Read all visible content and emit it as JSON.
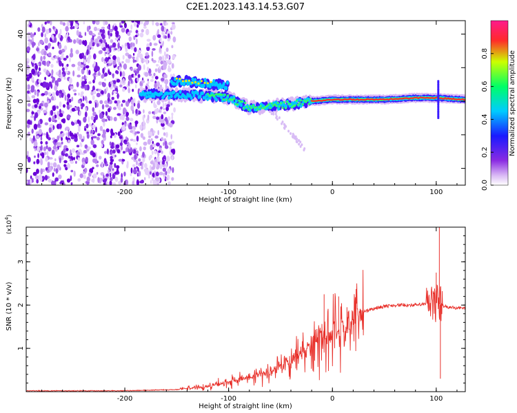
{
  "title": "C2E1.2023.143.14.53.G07",
  "chart_data": [
    {
      "type": "heatmap",
      "xlabel": "Height of straight line (km)",
      "ylabel": "Frequency (Hz)",
      "xlim": [
        -295,
        128
      ],
      "ylim": [
        -50,
        48
      ],
      "x_ticks": [
        -200,
        -100,
        0,
        100
      ],
      "y_ticks": [
        -40,
        -20,
        0,
        20,
        40
      ],
      "colorbar": {
        "label": "Normalized spectral amplitude",
        "range": [
          0,
          1
        ],
        "ticks": [
          0.0,
          0.2,
          0.4,
          0.6,
          0.8
        ],
        "tick_labels": [
          "0.0",
          "0.2",
          "0.4",
          "0.6",
          "0.8"
        ],
        "colormap": [
          "#ffffff",
          "#d9b8f5",
          "#8a2be2",
          "#1a1aff",
          "#00ccff",
          "#00ff66",
          "#ccff00",
          "#ff2a2a",
          "#ff1a8c"
        ]
      },
      "features": {
        "noise_region_x": [
          -295,
          -160
        ],
        "main_line": [
          {
            "x": -185,
            "f": 4
          },
          {
            "x": -165,
            "f": 4
          },
          {
            "x": -140,
            "f": 4
          },
          {
            "x": -120,
            "f": 3
          },
          {
            "x": -100,
            "f": 2
          },
          {
            "x": -80,
            "f": -4
          },
          {
            "x": -60,
            "f": -3
          },
          {
            "x": -40,
            "f": -2
          },
          {
            "x": -20,
            "f": 0
          },
          {
            "x": 0,
            "f": 1
          },
          {
            "x": 20,
            "f": 1
          },
          {
            "x": 50,
            "f": 1
          },
          {
            "x": 80,
            "f": 2
          },
          {
            "x": 100,
            "f": 2
          },
          {
            "x": 128,
            "f": 1
          }
        ],
        "upper_branch": [
          {
            "x": -155,
            "f": 12
          },
          {
            "x": -140,
            "f": 12
          },
          {
            "x": -125,
            "f": 11
          },
          {
            "x": -110,
            "f": 10
          },
          {
            "x": -100,
            "f": 9
          }
        ]
      }
    },
    {
      "type": "line",
      "xlabel": "Height of straight line (km)",
      "ylabel": "SNR (10 * v/v)",
      "y_multiplier": "(x10",
      "y_multiplier_exp": "4",
      "y_multiplier_close": ")",
      "xlim": [
        -295,
        128
      ],
      "ylim": [
        0,
        3.8
      ],
      "x_ticks": [
        -200,
        -100,
        0,
        100
      ],
      "y_ticks": [
        1,
        2,
        3
      ],
      "line_color": "#e8302a",
      "envelope": [
        {
          "x": -295,
          "y": 0.02
        },
        {
          "x": -200,
          "y": 0.02
        },
        {
          "x": -150,
          "y": 0.05
        },
        {
          "x": -120,
          "y": 0.12
        },
        {
          "x": -100,
          "y": 0.22
        },
        {
          "x": -80,
          "y": 0.32
        },
        {
          "x": -60,
          "y": 0.45
        },
        {
          "x": -40,
          "y": 0.75
        },
        {
          "x": -20,
          "y": 1.1
        },
        {
          "x": 0,
          "y": 1.3
        },
        {
          "x": 10,
          "y": 1.35
        },
        {
          "x": 20,
          "y": 1.6
        },
        {
          "x": 30,
          "y": 1.85
        },
        {
          "x": 45,
          "y": 1.95
        },
        {
          "x": 60,
          "y": 2.0
        },
        {
          "x": 80,
          "y": 2.0
        },
        {
          "x": 100,
          "y": 2.05
        },
        {
          "x": 110,
          "y": 1.95
        },
        {
          "x": 128,
          "y": 1.93
        }
      ],
      "spikes": [
        {
          "x": -8,
          "y": 2.25
        },
        {
          "x": 6,
          "y": 2.2
        },
        {
          "x": 14,
          "y": 1.95
        },
        {
          "x": 103,
          "y": 3.8
        },
        {
          "x": 104,
          "y": 0.3
        },
        {
          "x": 100,
          "y": 2.75
        }
      ]
    }
  ]
}
